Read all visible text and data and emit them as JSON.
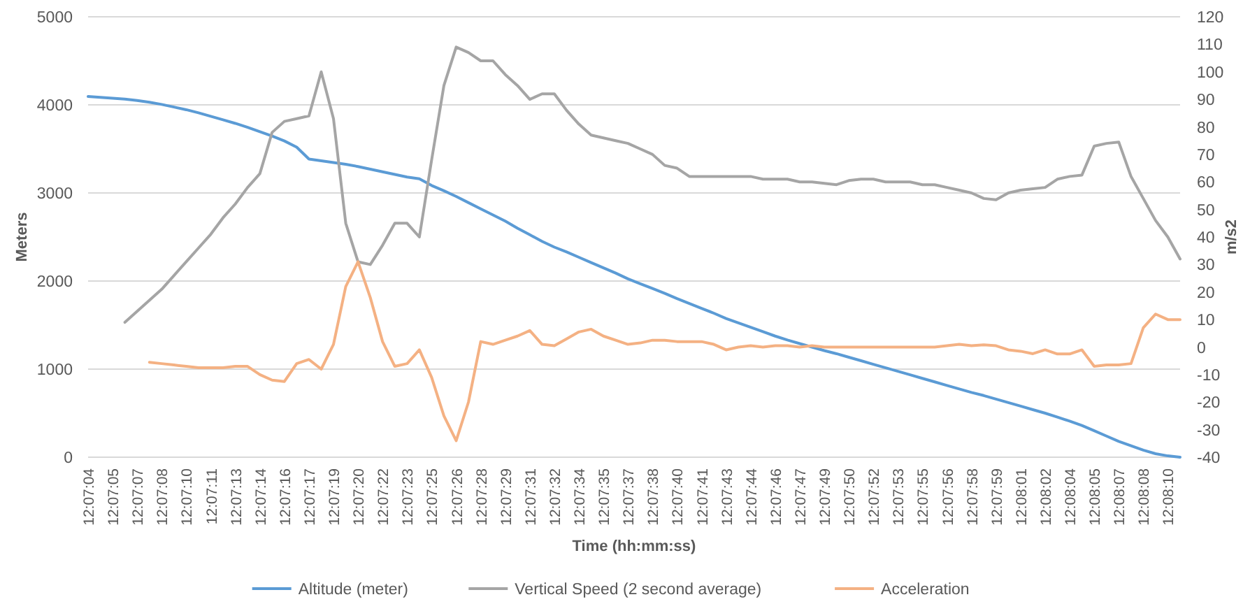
{
  "chart_data": {
    "type": "line",
    "categories": [
      "12:07:04",
      null,
      "12:07:05",
      null,
      "12:07:07",
      null,
      "12:07:08",
      null,
      "12:07:10",
      null,
      "12:07:11",
      null,
      "12:07:13",
      null,
      "12:07:14",
      null,
      "12:07:16",
      null,
      "12:07:17",
      null,
      "12:07:19",
      null,
      "12:07:20",
      null,
      "12:07:22",
      null,
      "12:07:23",
      null,
      "12:07:25",
      null,
      "12:07:26",
      null,
      "12:07:28",
      null,
      "12:07:29",
      null,
      "12:07:31",
      null,
      "12:07:32",
      null,
      "12:07:34",
      null,
      "12:07:35",
      null,
      "12:07:37",
      null,
      "12:07:38",
      null,
      "12:07:40",
      null,
      "12:07:41",
      null,
      "12:07:43",
      null,
      "12:07:44",
      null,
      "12:07:46",
      null,
      "12:07:47",
      null,
      "12:07:49",
      null,
      "12:07:50",
      null,
      "12:07:52",
      null,
      "12:07:53",
      null,
      "12:07:55",
      null,
      "12:07:56",
      null,
      "12:07:58",
      null,
      "12:07:59",
      null,
      "12:08:01",
      null,
      "12:08:02",
      null,
      "12:08:04",
      null,
      "12:08:05",
      null,
      "12:08:07",
      null,
      "12:08:08",
      null,
      "12:08:10",
      null
    ],
    "series": [
      {
        "name": "Altitude (meter)",
        "color": "#5b9bd5",
        "values": [
          4095,
          4085,
          4075,
          4065,
          4050,
          4030,
          4005,
          3975,
          3945,
          3910,
          3870,
          3830,
          3790,
          3745,
          3695,
          3645,
          3590,
          3520,
          3385,
          3365,
          3345,
          3325,
          3300,
          3270,
          3240,
          3210,
          3180,
          3160,
          3085,
          3025,
          2960,
          2890,
          2820,
          2750,
          2680,
          2600,
          2525,
          2450,
          2385,
          2330,
          2270,
          2210,
          2150,
          2090,
          2025,
          1970,
          1915,
          1860,
          1800,
          1745,
          1690,
          1635,
          1575,
          1525,
          1475,
          1425,
          1375,
          1330,
          1290,
          1250,
          1210,
          1175,
          1135,
          1095,
          1055,
          1015,
          975,
          935,
          895,
          855,
          815,
          775,
          735,
          700,
          660,
          620,
          580,
          540,
          500,
          455,
          410,
          360,
          300,
          240,
          180,
          130,
          80,
          40,
          15,
          0
        ]
      },
      {
        "name": "Vertical Speed (2 second average)",
        "color": "#a5a5a5",
        "axis": "y2",
        "values": [
          null,
          null,
          null,
          9,
          13,
          17,
          21,
          26,
          31,
          36,
          41,
          47,
          52,
          58,
          63,
          78,
          82,
          83,
          84,
          100,
          83,
          45,
          31,
          30,
          37,
          45,
          45,
          40,
          68,
          95,
          109,
          107,
          104,
          104,
          99,
          95,
          90,
          92,
          92,
          86,
          81,
          77,
          76,
          75,
          74,
          72,
          70,
          66,
          65,
          62,
          62,
          62,
          62,
          62,
          62,
          61,
          61,
          61,
          60,
          60,
          59.5,
          59,
          60.5,
          61,
          61,
          60,
          60,
          60,
          59,
          59,
          58,
          57,
          56,
          54,
          53.5,
          56,
          57,
          57.5,
          58,
          61,
          62,
          62.5,
          73,
          74,
          74.5,
          62,
          54,
          46,
          40,
          32
        ]
      },
      {
        "name": "Acceleration",
        "color": "#f4b183",
        "axis": "y2",
        "values": [
          null,
          null,
          null,
          null,
          null,
          -5.5,
          -6,
          -6.5,
          -7,
          -7.5,
          -7.5,
          -7.5,
          -7,
          -7,
          -10,
          -12,
          -12.5,
          -6,
          -4.5,
          -8,
          1,
          22,
          31,
          18,
          2,
          -7,
          -6,
          -1,
          -11,
          -25,
          -34,
          -20,
          2,
          1,
          2.5,
          4,
          6,
          1,
          0.5,
          3,
          5.5,
          6.5,
          4,
          2.5,
          1,
          1.5,
          2.5,
          2.5,
          2,
          2,
          2,
          1,
          -1,
          0,
          0.5,
          0,
          0.5,
          0.5,
          0,
          0.5,
          0,
          0,
          0,
          0,
          0,
          0,
          0,
          0,
          0,
          0,
          0.5,
          1,
          0.5,
          0.8,
          0.5,
          -1,
          -1.5,
          -2.4,
          -1,
          -2.5,
          -2.5,
          -1,
          -7,
          -6.5,
          -6.5,
          -6,
          7,
          12,
          10,
          10
        ]
      }
    ],
    "xlabel": "Time (hh:mm:ss)",
    "ylabel": "Meters",
    "y2label": "m/s2",
    "ylim": [
      0,
      5000
    ],
    "yticks": [
      0,
      1000,
      2000,
      3000,
      4000,
      5000
    ],
    "y2lim": [
      -40,
      120
    ],
    "y2ticks": [
      -40,
      -30,
      -20,
      -10,
      0,
      10,
      20,
      30,
      40,
      50,
      60,
      70,
      80,
      90,
      100,
      110,
      120
    ],
    "grid": "y",
    "legend": "bottom",
    "marker": "none",
    "line_style": "solid"
  }
}
